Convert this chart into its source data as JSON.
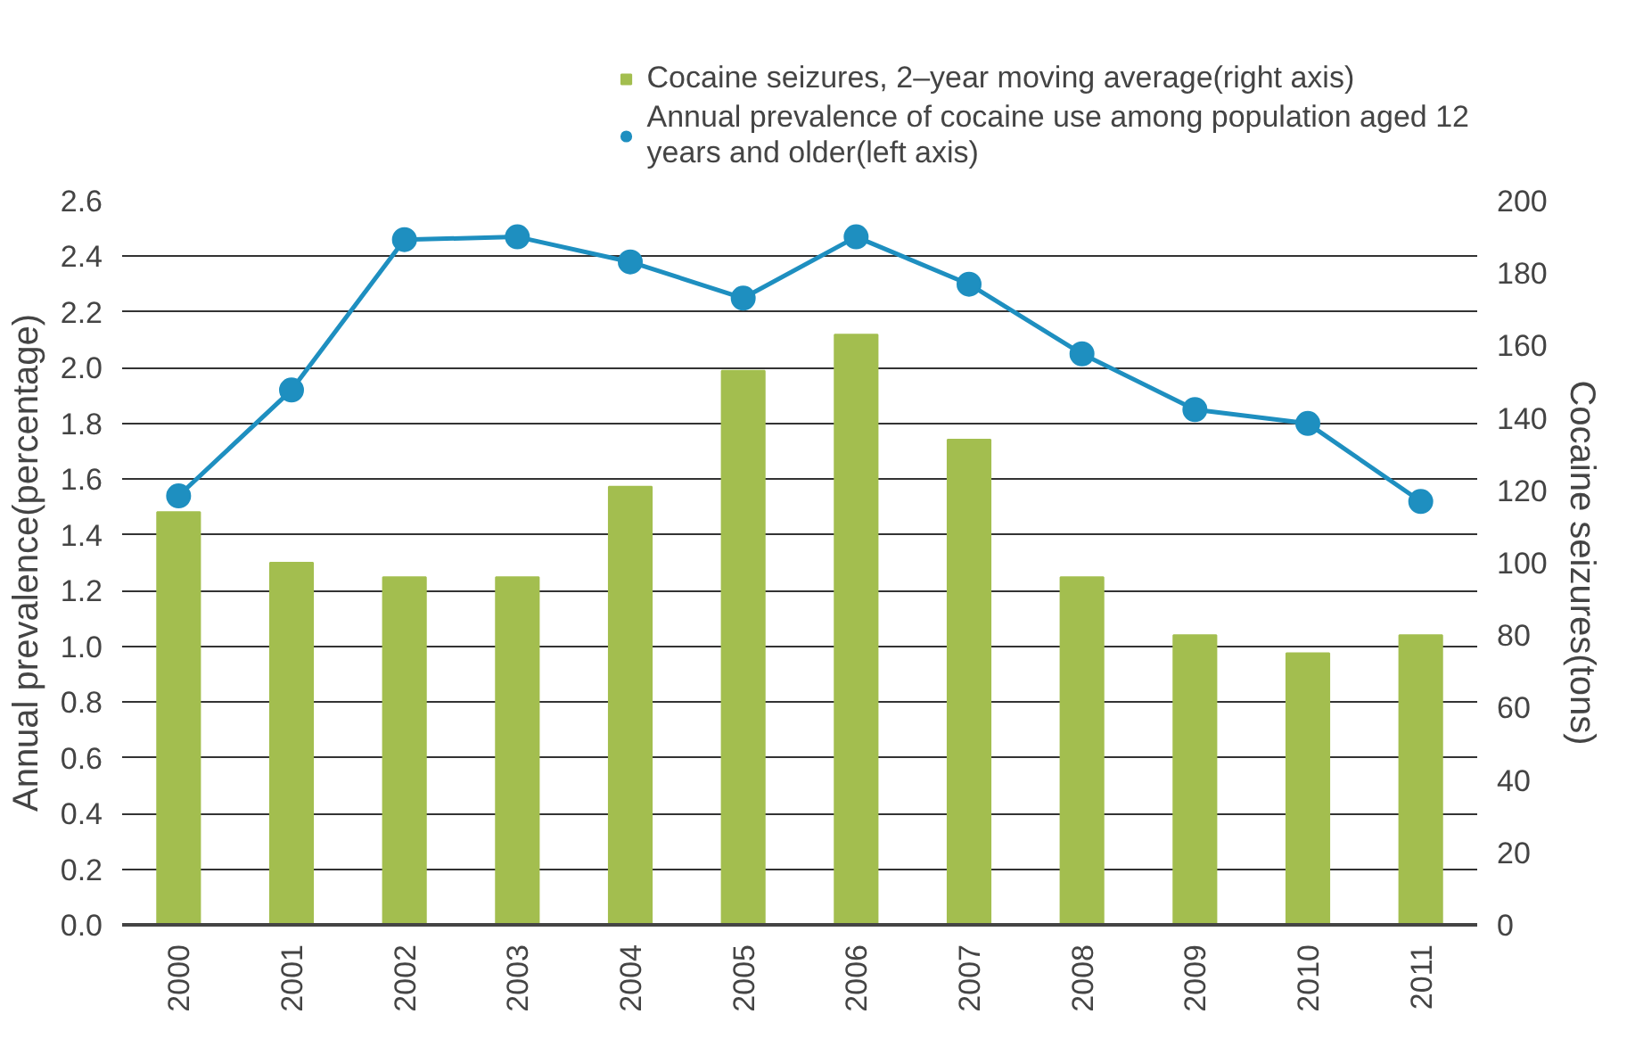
{
  "chart_data": {
    "type": "bar",
    "categories": [
      "2000",
      "2001",
      "2002",
      "2003",
      "2004",
      "2005",
      "2006",
      "2007",
      "2008",
      "2009",
      "2010",
      "2011"
    ],
    "series": [
      {
        "name": "Cocaine seizures, 2–year moving average(right axis)",
        "type": "bar",
        "axis": "y2",
        "color": "#a3be4f",
        "values": [
          114,
          100,
          96,
          96,
          121,
          153,
          163,
          134,
          96,
          80,
          75,
          80
        ]
      },
      {
        "name": "Annual prevalence of cocaine use among population aged 12 years and older(left axis)",
        "type": "line",
        "color": "#1e8fc0",
        "values": [
          1.54,
          1.92,
          2.46,
          2.47,
          2.38,
          2.25,
          2.47,
          2.3,
          2.05,
          1.85,
          1.8,
          1.52
        ]
      }
    ],
    "ylabel": "Annual prevalence(percentage)",
    "y2label": "Cocaine seizures(tons)",
    "ylim": [
      0,
      2.6
    ],
    "yticks": [
      {
        "value": 0,
        "label": "0.0"
      },
      {
        "value": 0.2,
        "label": "0.2"
      },
      {
        "value": 0.4,
        "label": "0.4"
      },
      {
        "value": 0.6,
        "label": "0.6"
      },
      {
        "value": 0.8,
        "label": "0.8"
      },
      {
        "value": 1.0,
        "label": "1.0"
      },
      {
        "value": 1.2,
        "label": "1.2"
      },
      {
        "value": 1.4,
        "label": "1.4"
      },
      {
        "value": 1.6,
        "label": "1.6"
      },
      {
        "value": 1.8,
        "label": "1.8"
      },
      {
        "value": 2.0,
        "label": "2.0"
      },
      {
        "value": 2.2,
        "label": "2.2"
      },
      {
        "value": 2.4,
        "label": "2.4"
      },
      {
        "value": 2.6,
        "label": "2.6"
      }
    ],
    "y2lim": [
      0,
      200
    ],
    "y2ticks": [
      0,
      20,
      40,
      60,
      80,
      100,
      120,
      140,
      160,
      180,
      200
    ],
    "grid": "y",
    "legend": "top",
    "marker": "circle",
    "line_style": "solid"
  }
}
